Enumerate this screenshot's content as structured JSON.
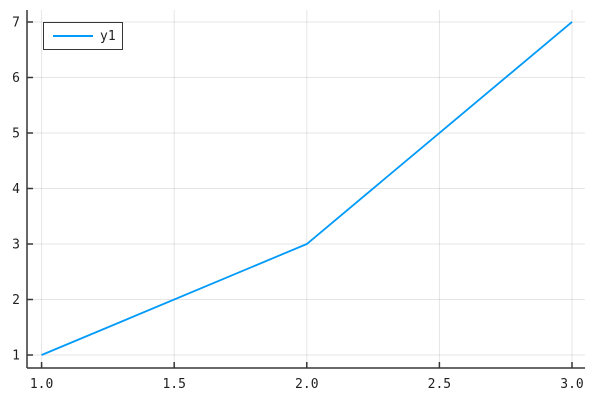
{
  "chart_data": {
    "type": "line",
    "title": "",
    "xlabel": "",
    "ylabel": "",
    "series": [
      {
        "name": "y1",
        "x": [
          1.0,
          2.0,
          3.0
        ],
        "y": [
          1,
          3,
          7
        ],
        "color": "#009AF9"
      }
    ],
    "xlim": [
      0.945,
      3.049
    ],
    "ylim": [
      0.766,
      7.216
    ],
    "xticks": [
      1.0,
      1.5,
      2.0,
      2.5,
      3.0
    ],
    "xtick_labels": [
      "1.0",
      "1.5",
      "2.0",
      "2.5",
      "3.0"
    ],
    "yticks": [
      1,
      2,
      3,
      4,
      5,
      6,
      7
    ],
    "ytick_labels": [
      "1",
      "2",
      "3",
      "4",
      "5",
      "6",
      "7"
    ],
    "grid": true,
    "legend_position": "top-left"
  },
  "colors": {
    "series1": "#009AF9",
    "grid": "rgba(0,0,0,0.10)",
    "axis": "#363636",
    "text": "#1f1f1f",
    "background": "#ffffff"
  }
}
